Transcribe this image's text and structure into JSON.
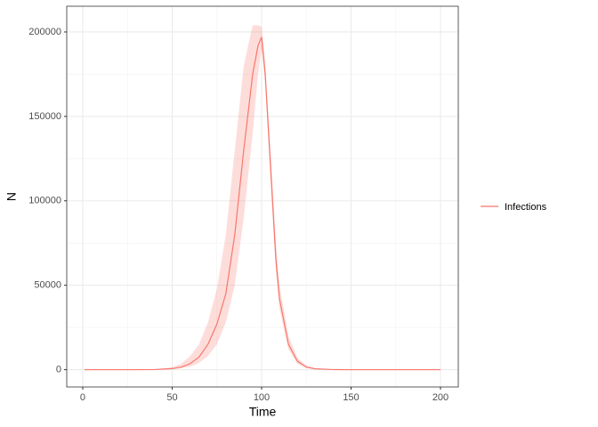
{
  "chart_data": {
    "type": "line",
    "x_label": "Time",
    "y_label": "N",
    "x": [
      1,
      10,
      20,
      30,
      40,
      50,
      55,
      60,
      65,
      70,
      75,
      80,
      85,
      90,
      95,
      98,
      100,
      102,
      105,
      108,
      110,
      115,
      120,
      125,
      130,
      140,
      150,
      160,
      170,
      180,
      190,
      200
    ],
    "series": [
      {
        "name": "Infections",
        "color": "#F8766D",
        "values": [
          0,
          0,
          0,
          0,
          50,
          600,
          1500,
          3500,
          7500,
          15000,
          27000,
          45000,
          80000,
          130000,
          175000,
          192000,
          197000,
          175000,
          120000,
          65000,
          42000,
          15000,
          5000,
          1500,
          500,
          50,
          0,
          0,
          0,
          0,
          0,
          0
        ],
        "lower": [
          0,
          0,
          0,
          0,
          0,
          300,
          800,
          1800,
          4000,
          8000,
          15000,
          28000,
          50000,
          90000,
          140000,
          175000,
          190000,
          170000,
          112000,
          58000,
          36000,
          12000,
          3500,
          1000,
          300,
          20,
          0,
          0,
          0,
          0,
          0,
          0
        ],
        "upper": [
          0,
          0,
          0,
          0,
          150,
          1500,
          3500,
          8000,
          15000,
          28000,
          48000,
          80000,
          130000,
          180000,
          204000,
          204000,
          203000,
          182000,
          130000,
          75000,
          50000,
          20000,
          7000,
          2500,
          900,
          100,
          0,
          0,
          0,
          0,
          0,
          0
        ]
      }
    ],
    "xlim": [
      -8.95,
      209.95
    ],
    "xticks": [
      0,
      50,
      100,
      150,
      200
    ],
    "ylim": [
      -10250,
      215250
    ],
    "yticks": [
      0,
      50000,
      100000,
      150000,
      200000
    ],
    "grid": true,
    "legend": "right"
  }
}
